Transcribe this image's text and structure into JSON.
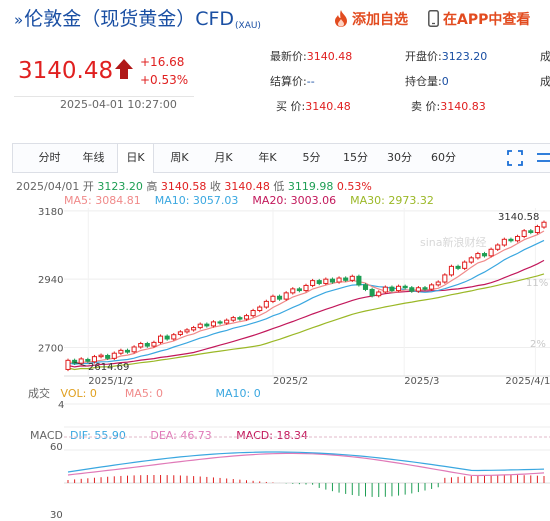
{
  "header": {
    "chevron": "»",
    "title": "伦敦金（现货黄金）CFD",
    "subtitle": "(XAU)",
    "add_favorite": "添加自选",
    "view_in_app": "在APP中查看"
  },
  "quote": {
    "price": "3140.48",
    "change": "+16.68",
    "change_pct": "+0.53%",
    "datetime": "2025-04-01 10:27:00",
    "latest_label": "最新价:",
    "latest_value": "3140.48",
    "open_label": "开盘价:",
    "open_value": "3123.20",
    "settle_label": "结算价:",
    "settle_value": "--",
    "position_label": "持仓量:",
    "position_value": "0",
    "buy_label": "买  价:",
    "buy_value": "3140.48",
    "sell_label": "卖  价:",
    "sell_value": "3140.83",
    "extra_label_1": "成",
    "extra_label_2": "成"
  },
  "toolbar": {
    "tabs": [
      "分时",
      "年线",
      "日K",
      "周K",
      "月K",
      "年K",
      "5分",
      "15分",
      "30分",
      "60分"
    ],
    "active_tab": "日K"
  },
  "ohlc": {
    "date": "2025/04/01",
    "open_label": "开",
    "open": "3123.20",
    "high_label": "高",
    "high": "3140.58",
    "close_label": "收",
    "close": "3140.48",
    "low_label": "低",
    "low": "3119.98",
    "pct": "0.53%"
  },
  "ma": {
    "ma5": "MA5: 3084.81",
    "ma10": "MA10: 3057.03",
    "ma20": "MA20: 3003.06",
    "ma30": "MA30: 2973.32"
  },
  "volume": {
    "label": "成交",
    "vol": "VOL: 0",
    "ma5": "MA5: 0",
    "ma10": "MA10: 0",
    "axis_top": "4"
  },
  "macd": {
    "label": "MACD",
    "dif": "DIF: 55.90",
    "dea": "DEA: 46.73",
    "macd": "MACD: 18.34",
    "axis_top": "60",
    "axis_bottom": "30"
  },
  "watermark": "sina新浪财经",
  "colors": {
    "up": "#e02020",
    "down": "#1e9e54",
    "ma5": "#f08a8a",
    "ma10": "#3aa7e0",
    "ma20": "#c2185b",
    "ma30": "#9bb827",
    "brand_blue": "#1a4fa3",
    "accent_orange": "#e24b1f"
  },
  "chart_data": {
    "type": "candlestick",
    "title": "",
    "x_ticks": [
      "2025/1/2",
      "2025/2",
      "2025/3",
      "2025/4/1"
    ],
    "y_ticks": [
      2700,
      2940,
      3180
    ],
    "ylim": [
      2600,
      3190
    ],
    "right_axis_pct": [
      "11%",
      "2%"
    ],
    "high_annotation": "3140.58",
    "low_annotation": "2614.69",
    "candles": [
      {
        "o": 2623,
        "c": 2655
      },
      {
        "o": 2655,
        "c": 2645
      },
      {
        "o": 2645,
        "c": 2660
      },
      {
        "o": 2658,
        "c": 2652
      },
      {
        "o": 2650,
        "c": 2668
      },
      {
        "o": 2668,
        "c": 2673
      },
      {
        "o": 2672,
        "c": 2662
      },
      {
        "o": 2662,
        "c": 2680
      },
      {
        "o": 2680,
        "c": 2690
      },
      {
        "o": 2690,
        "c": 2684
      },
      {
        "o": 2685,
        "c": 2702
      },
      {
        "o": 2702,
        "c": 2714
      },
      {
        "o": 2714,
        "c": 2705
      },
      {
        "o": 2705,
        "c": 2718
      },
      {
        "o": 2718,
        "c": 2740
      },
      {
        "o": 2740,
        "c": 2730
      },
      {
        "o": 2730,
        "c": 2745
      },
      {
        "o": 2746,
        "c": 2755
      },
      {
        "o": 2755,
        "c": 2762
      },
      {
        "o": 2762,
        "c": 2770
      },
      {
        "o": 2770,
        "c": 2782
      },
      {
        "o": 2782,
        "c": 2776
      },
      {
        "o": 2776,
        "c": 2790
      },
      {
        "o": 2790,
        "c": 2786
      },
      {
        "o": 2786,
        "c": 2796
      },
      {
        "o": 2796,
        "c": 2805
      },
      {
        "o": 2805,
        "c": 2800
      },
      {
        "o": 2800,
        "c": 2812
      },
      {
        "o": 2812,
        "c": 2830
      },
      {
        "o": 2830,
        "c": 2842
      },
      {
        "o": 2842,
        "c": 2862
      },
      {
        "o": 2862,
        "c": 2880
      },
      {
        "o": 2880,
        "c": 2870
      },
      {
        "o": 2870,
        "c": 2892
      },
      {
        "o": 2892,
        "c": 2906
      },
      {
        "o": 2906,
        "c": 2900
      },
      {
        "o": 2900,
        "c": 2918
      },
      {
        "o": 2918,
        "c": 2935
      },
      {
        "o": 2935,
        "c": 2925
      },
      {
        "o": 2925,
        "c": 2940
      },
      {
        "o": 2940,
        "c": 2930
      },
      {
        "o": 2930,
        "c": 2944
      },
      {
        "o": 2944,
        "c": 2936
      },
      {
        "o": 2936,
        "c": 2950
      },
      {
        "o": 2950,
        "c": 2920
      },
      {
        "o": 2920,
        "c": 2904
      },
      {
        "o": 2904,
        "c": 2882
      },
      {
        "o": 2882,
        "c": 2895
      },
      {
        "o": 2895,
        "c": 2912
      },
      {
        "o": 2912,
        "c": 2900
      },
      {
        "o": 2900,
        "c": 2915
      },
      {
        "o": 2915,
        "c": 2910
      },
      {
        "o": 2910,
        "c": 2898
      },
      {
        "o": 2898,
        "c": 2910
      },
      {
        "o": 2910,
        "c": 2905
      },
      {
        "o": 2905,
        "c": 2920
      },
      {
        "o": 2920,
        "c": 2930
      },
      {
        "o": 2930,
        "c": 2955
      },
      {
        "o": 2955,
        "c": 2985
      },
      {
        "o": 2985,
        "c": 2978
      },
      {
        "o": 2978,
        "c": 3000
      },
      {
        "o": 3000,
        "c": 3015
      },
      {
        "o": 3015,
        "c": 3030
      },
      {
        "o": 3030,
        "c": 3022
      },
      {
        "o": 3022,
        "c": 3045
      },
      {
        "o": 3045,
        "c": 3060
      },
      {
        "o": 3060,
        "c": 3080
      },
      {
        "o": 3080,
        "c": 3075
      },
      {
        "o": 3075,
        "c": 3090
      },
      {
        "o": 3090,
        "c": 3110
      },
      {
        "o": 3110,
        "c": 3104
      },
      {
        "o": 3104,
        "c": 3125
      },
      {
        "o": 3123,
        "c": 3140
      }
    ]
  }
}
